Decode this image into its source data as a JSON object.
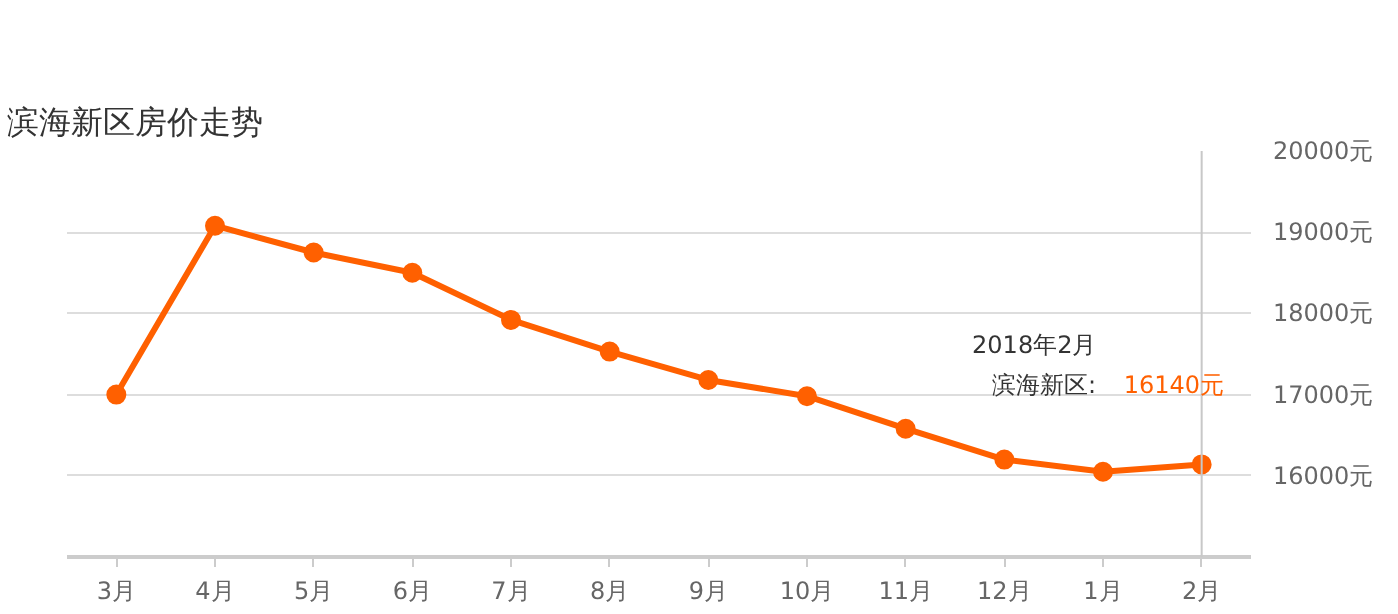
{
  "chart_data": {
    "type": "line",
    "title": "滨海新区房价走势",
    "categories": [
      "3月",
      "4月",
      "5月",
      "6月",
      "7月",
      "8月",
      "9月",
      "10月",
      "11月",
      "12月",
      "1月",
      "2月"
    ],
    "series": [
      {
        "color": "#ff6000",
        "values": [
          17000,
          19080,
          18750,
          18500,
          17920,
          17530,
          17180,
          16980,
          16580,
          16200,
          16050,
          16140
        ]
      }
    ],
    "ylim": [
      15000,
      20000
    ],
    "yticks": [
      {
        "value": 15000,
        "label": null
      },
      {
        "value": 16000,
        "label": "16000元"
      },
      {
        "value": 17000,
        "label": "17000元"
      },
      {
        "value": 18000,
        "label": "18000元"
      },
      {
        "value": 19000,
        "label": "19000元"
      },
      {
        "value": 20000,
        "label": "20000元"
      }
    ],
    "grid": "y",
    "marker": "circle",
    "line_style": "solid",
    "ref_lines": [
      {
        "axis": "x",
        "value": "2月",
        "color": "#c8c8c8"
      }
    ],
    "annotations": [
      "2018年2月",
      "滨海新区:",
      "16140元"
    ]
  }
}
